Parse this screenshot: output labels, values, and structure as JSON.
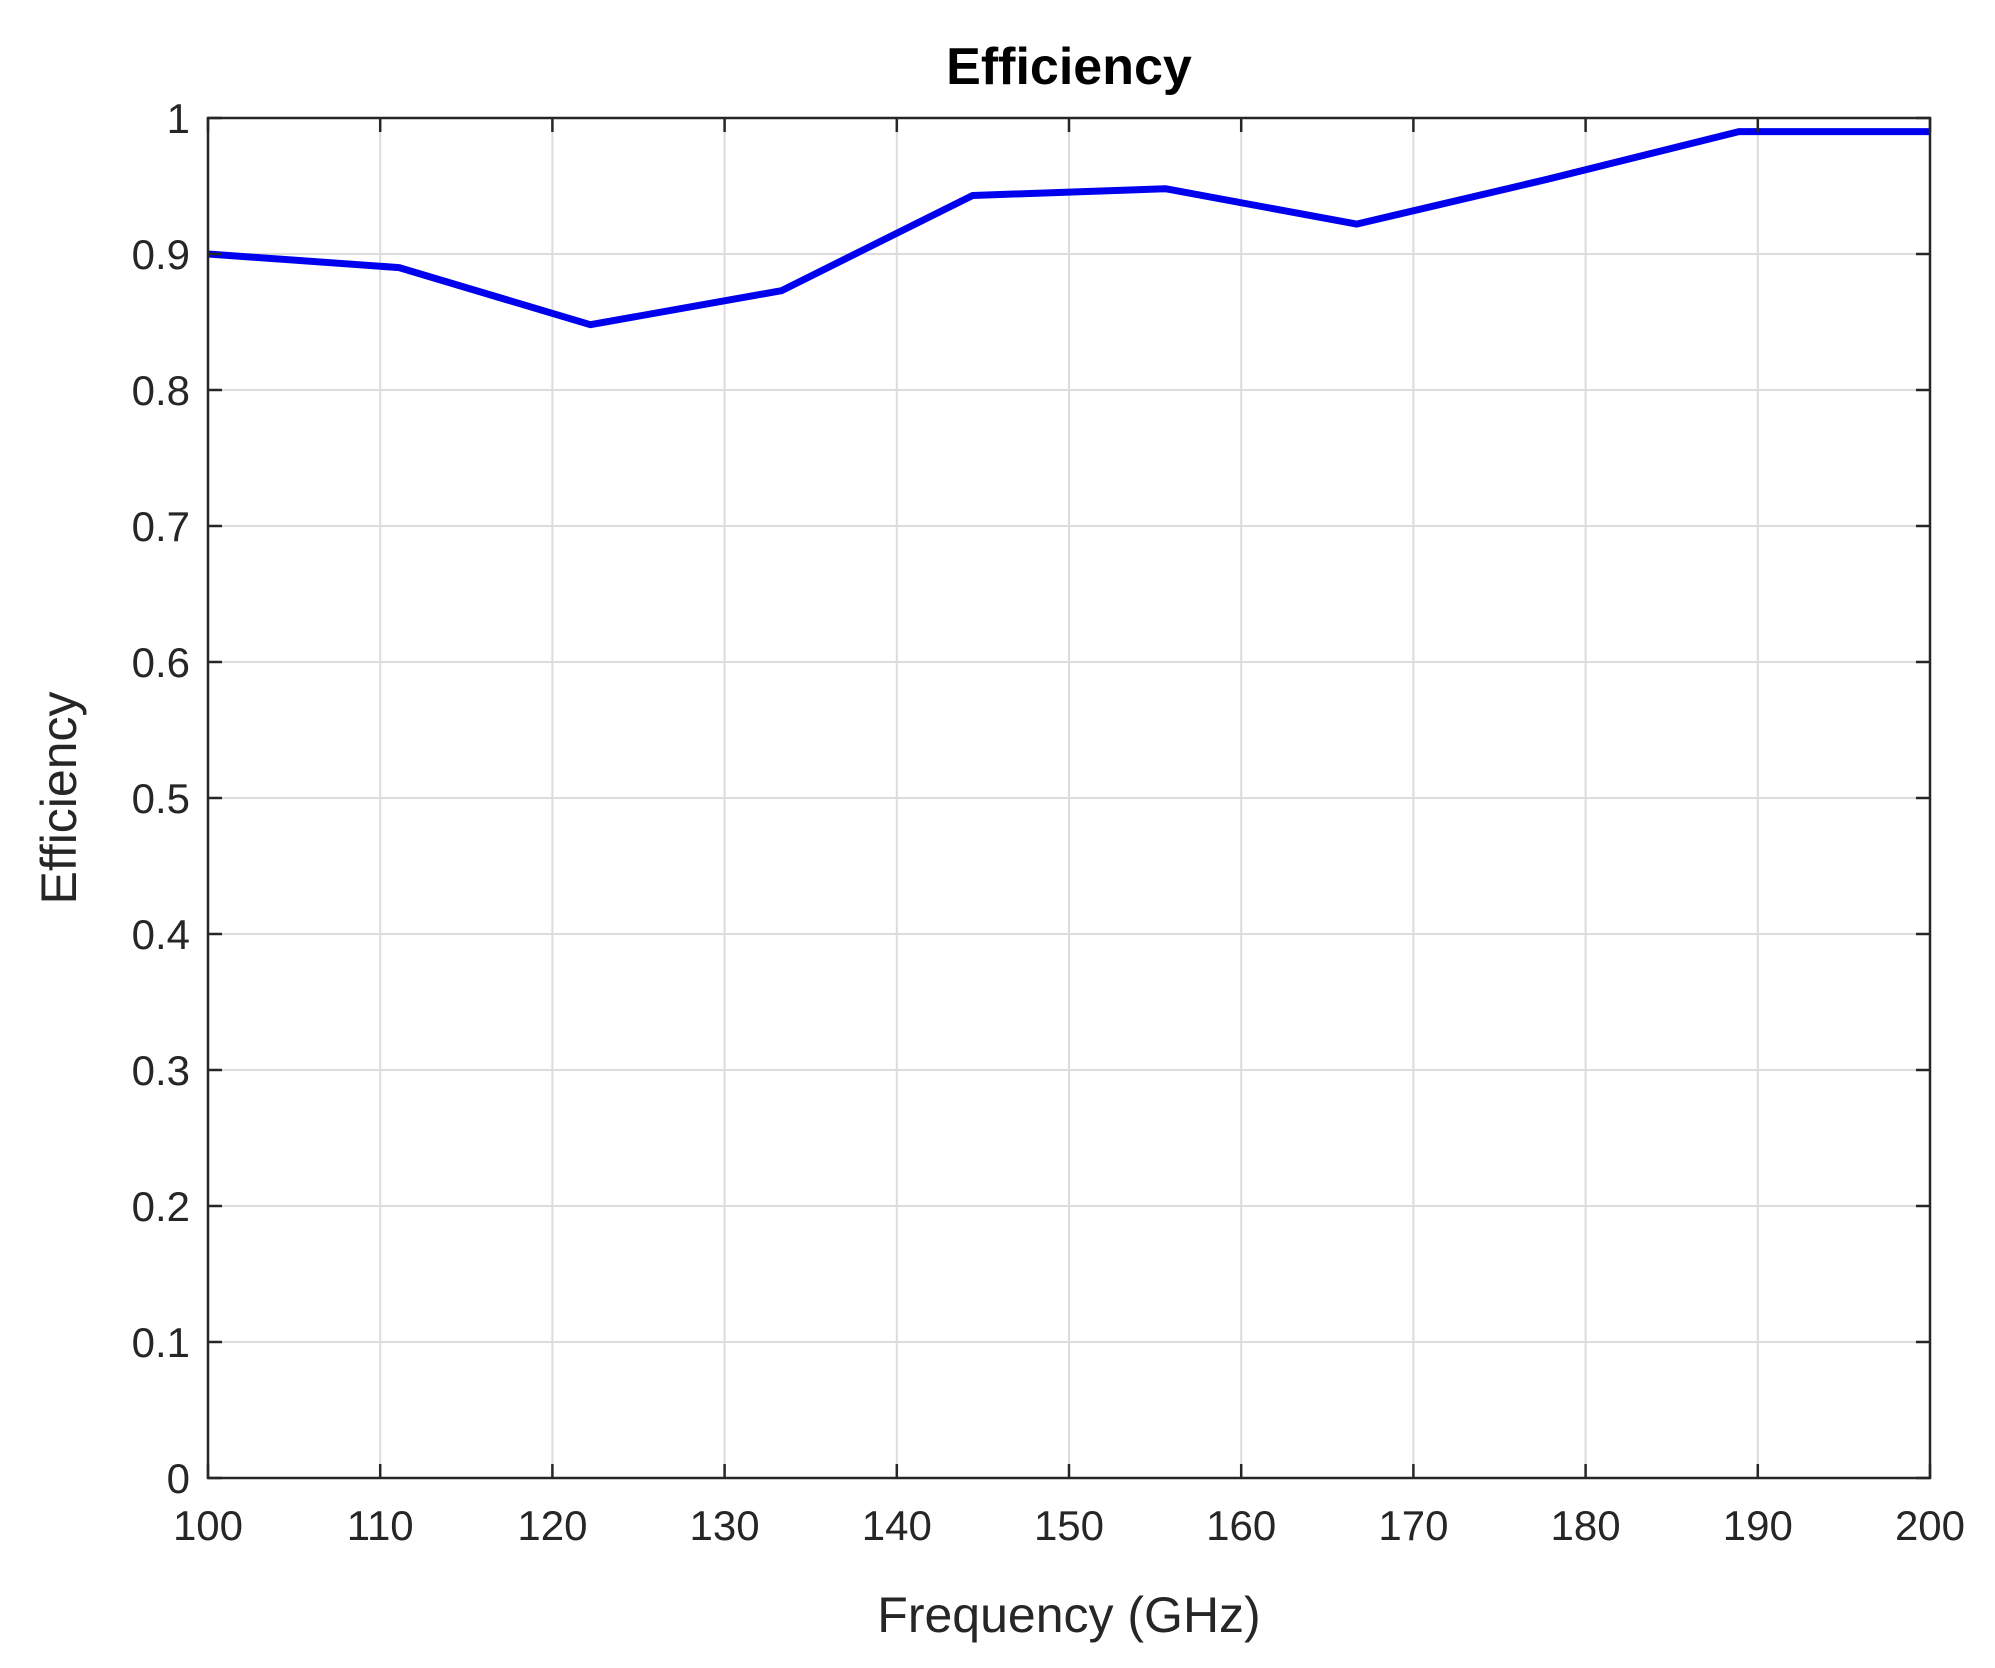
{
  "chart_data": {
    "type": "line",
    "title": "Efficiency",
    "xlabel": "Frequency (GHz)",
    "ylabel": "Efficiency",
    "xlim": [
      100,
      200
    ],
    "ylim": [
      0,
      1
    ],
    "xticks": [
      100,
      110,
      120,
      130,
      140,
      150,
      160,
      170,
      180,
      190,
      200
    ],
    "yticks": [
      0,
      0.1,
      0.2,
      0.3,
      0.4,
      0.5,
      0.6,
      0.7,
      0.8,
      0.9,
      1
    ],
    "xtick_labels": [
      "100",
      "110",
      "120",
      "130",
      "140",
      "150",
      "160",
      "170",
      "180",
      "190",
      "200"
    ],
    "ytick_labels": [
      "0",
      "0.1",
      "0.2",
      "0.3",
      "0.4",
      "0.5",
      "0.6",
      "0.7",
      "0.8",
      "0.9",
      "1"
    ],
    "grid": true,
    "series": [
      {
        "color": "#0000ee",
        "x": [
          100,
          111.1,
          122.2,
          133.3,
          144.4,
          155.6,
          166.7,
          177.8,
          188.9,
          200
        ],
        "y": [
          0.9,
          0.89,
          0.848,
          0.873,
          0.943,
          0.948,
          0.922,
          0.955,
          0.99,
          0.99
        ]
      }
    ]
  }
}
